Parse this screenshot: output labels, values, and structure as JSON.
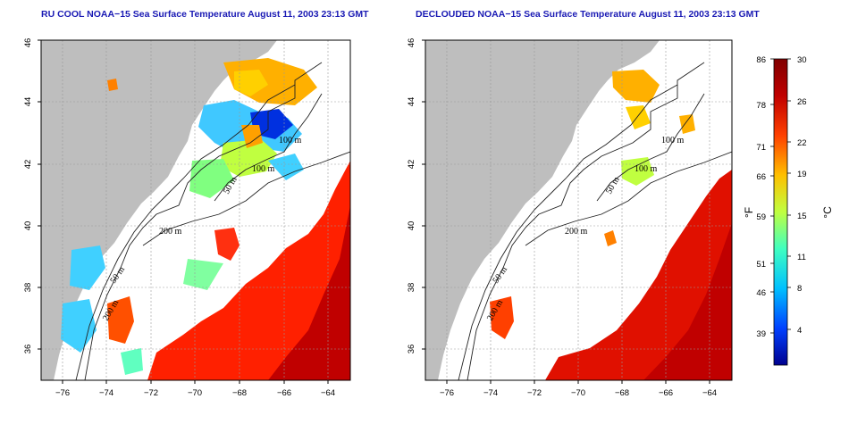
{
  "panels": [
    {
      "title": "RU COOL NOAA−15 Sea Surface Temperature August 11, 2003 23:13 GMT",
      "contour_labels": [
        "200 m",
        "100 m",
        "100 m",
        "50 m",
        "50 m",
        "200 m"
      ]
    },
    {
      "title": "DECLOUDED NOAA−15 Sea Surface Temperature August 11, 2003 23:13 GMT",
      "contour_labels": [
        "200 m",
        "100 m",
        "100 m",
        "50 m",
        "50 m",
        "200 m"
      ]
    }
  ],
  "x_ticks": [
    "−76",
    "−74",
    "−72",
    "−70",
    "−68",
    "−66",
    "−64"
  ],
  "y_ticks": [
    "36",
    "38",
    "40",
    "42",
    "44",
    "46"
  ],
  "colorbar": {
    "fahrenheit_ticks": [
      "86",
      "78",
      "71",
      "66",
      "59",
      "51",
      "46",
      "39"
    ],
    "celsius_ticks": [
      "30",
      "26",
      "22",
      "19",
      "15",
      "11",
      "8",
      "4"
    ],
    "fahrenheit_label": "°F",
    "celsius_label": "°C",
    "range_celsius": [
      0,
      30
    ],
    "colors": [
      "#00008f",
      "#0040ff",
      "#00c0ff",
      "#40ffc0",
      "#c0ff40",
      "#ffc000",
      "#ff4000",
      "#c00000",
      "#800000"
    ]
  },
  "map": {
    "lon_range": [
      -77,
      -63
    ],
    "lat_range": [
      35,
      46
    ],
    "land_color": "#bebebe",
    "ocean_color": "#ffffff"
  }
}
